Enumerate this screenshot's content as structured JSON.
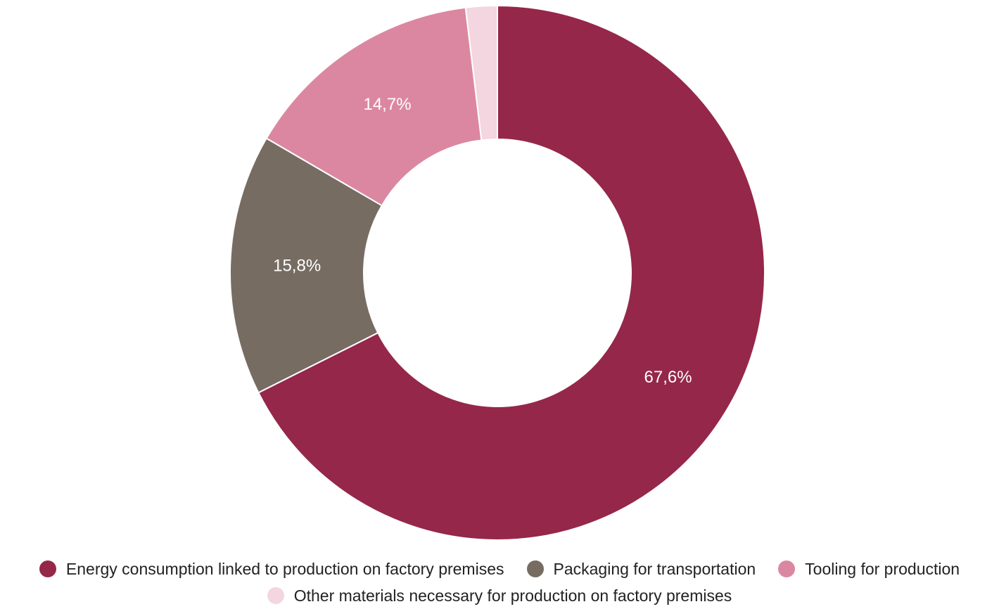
{
  "chart_data": {
    "type": "pie",
    "variant": "donut",
    "title": "",
    "start_angle_deg": 0,
    "direction": "clockwise",
    "slices": [
      {
        "name": "Energy consumption linked to production on factory premises",
        "value": 67.6,
        "label": "67,6%",
        "color": "#95274A"
      },
      {
        "name": "Packaging for transportation",
        "value": 15.8,
        "label": "15,8%",
        "color": "#776C62"
      },
      {
        "name": "Tooling for production",
        "value": 14.7,
        "label": "14,7%",
        "color": "#DC87A1"
      },
      {
        "name": "Other materials necessary for production on factory premises",
        "value": 1.9,
        "label": "",
        "color": "#F3D6DF"
      }
    ],
    "legend": {
      "position": "bottom"
    }
  }
}
